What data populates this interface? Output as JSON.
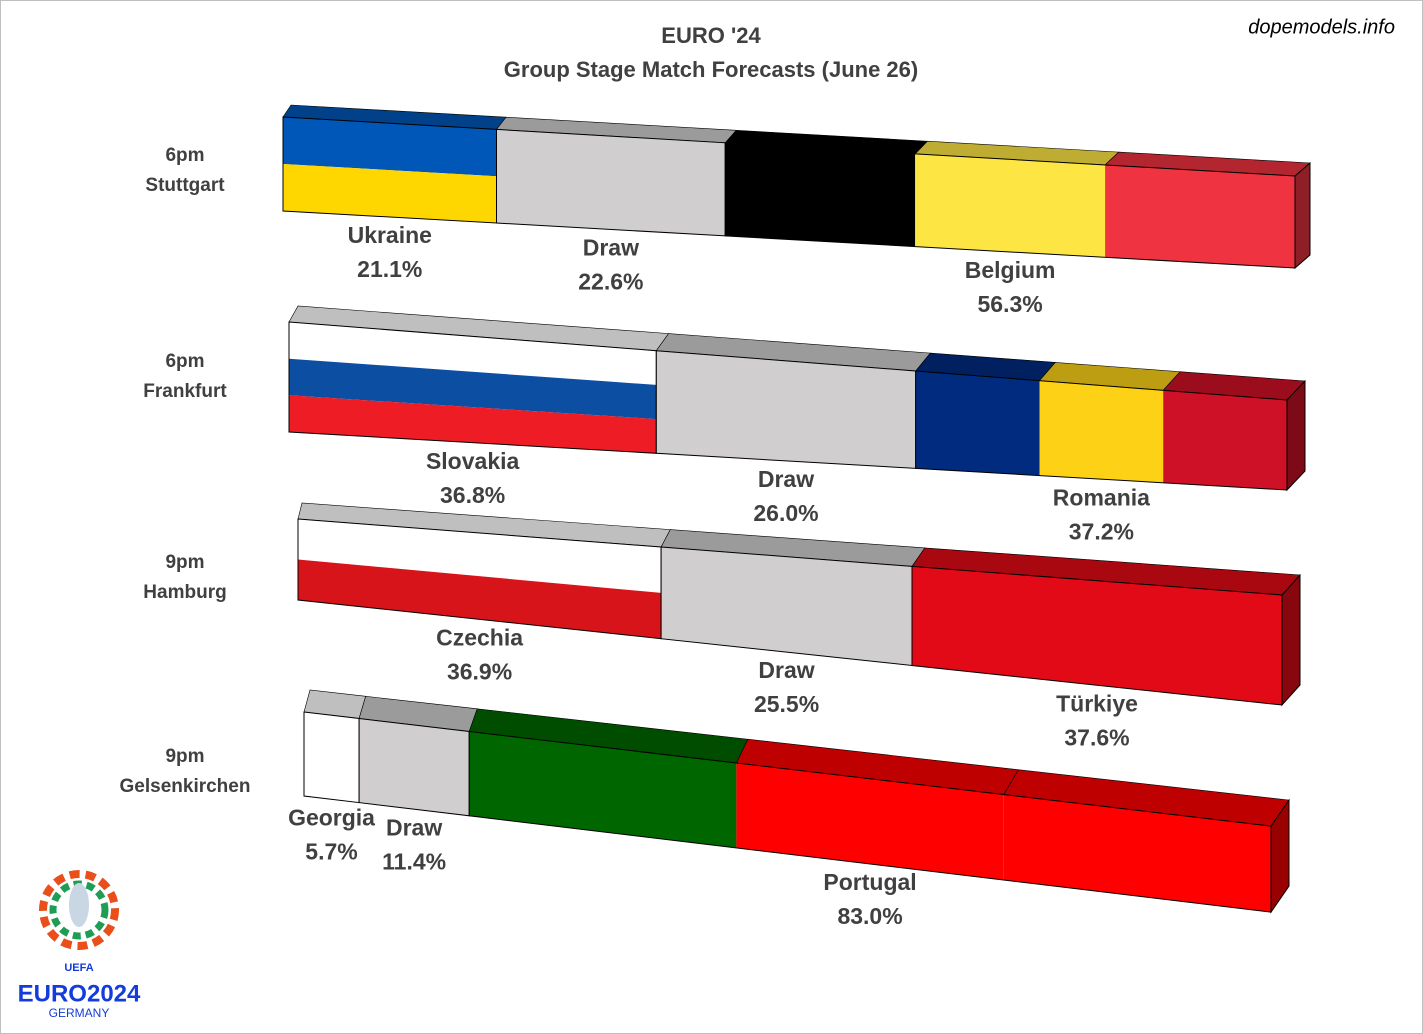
{
  "chart_data": {
    "type": "bar3d",
    "stacked": true,
    "orientation": "horizontal",
    "title": "EURO '24",
    "subtitle": "Group Stage Match Forecasts (June 26)",
    "source": "dopemodels.info",
    "xlim": [
      0,
      100
    ],
    "times": [
      "6pm",
      "6pm",
      "9pm",
      "9pm"
    ],
    "venues": [
      "Stuttgart",
      "Frankfurt",
      "Hamburg",
      "Gelsenkirchen"
    ],
    "matches": [
      {
        "segments": [
          {
            "name": "Ukraine",
            "value": 21.1,
            "value_label": "21.1%",
            "stripes": "horizontal",
            "colors": [
              "#0057b7",
              "#ffd700"
            ]
          },
          {
            "name": "Draw",
            "value": 22.6,
            "value_label": "22.6%",
            "stripes": "horizontal",
            "colors": [
              "#d0cece"
            ]
          },
          {
            "name": "Belgium",
            "value": 56.3,
            "value_label": "56.3%",
            "stripes": "vertical",
            "colors": [
              "#000000",
              "#fde544",
              "#ef3340"
            ]
          }
        ]
      },
      {
        "segments": [
          {
            "name": "Slovakia",
            "value": 36.8,
            "value_label": "36.8%",
            "stripes": "horizontal",
            "colors": [
              "#ffffff",
              "#0b4ea2",
              "#ee1c25"
            ]
          },
          {
            "name": "Draw",
            "value": 26.0,
            "value_label": "26.0%",
            "stripes": "horizontal",
            "colors": [
              "#d0cece"
            ]
          },
          {
            "name": "Romania",
            "value": 37.2,
            "value_label": "37.2%",
            "stripes": "vertical",
            "colors": [
              "#002b7f",
              "#fcd116",
              "#ce1126"
            ]
          }
        ]
      },
      {
        "segments": [
          {
            "name": "Czechia",
            "value": 36.9,
            "value_label": "36.9%",
            "stripes": "horizontal",
            "colors": [
              "#ffffff",
              "#d7141a"
            ]
          },
          {
            "name": "Draw",
            "value": 25.5,
            "value_label": "25.5%",
            "stripes": "horizontal",
            "colors": [
              "#d0cece"
            ]
          },
          {
            "name": "Türkiye",
            "value": 37.6,
            "value_label": "37.6%",
            "stripes": "horizontal",
            "colors": [
              "#e30a17"
            ]
          }
        ]
      },
      {
        "segments": [
          {
            "name": "Georgia",
            "value": 5.7,
            "value_label": "5.7%",
            "stripes": "horizontal",
            "colors": [
              "#ffffff"
            ]
          },
          {
            "name": "Draw",
            "value": 11.4,
            "value_label": "11.4%",
            "stripes": "horizontal",
            "colors": [
              "#d0cece"
            ]
          },
          {
            "name": "Portugal",
            "value": 83.0,
            "value_label": "83.0%",
            "stripes": "vertical",
            "colors": [
              "#006600",
              "#ff0000",
              "#ff0000"
            ]
          }
        ]
      }
    ],
    "logo": {
      "org": "UEFA",
      "name": "EURO2024",
      "country": "GERMANY"
    }
  }
}
